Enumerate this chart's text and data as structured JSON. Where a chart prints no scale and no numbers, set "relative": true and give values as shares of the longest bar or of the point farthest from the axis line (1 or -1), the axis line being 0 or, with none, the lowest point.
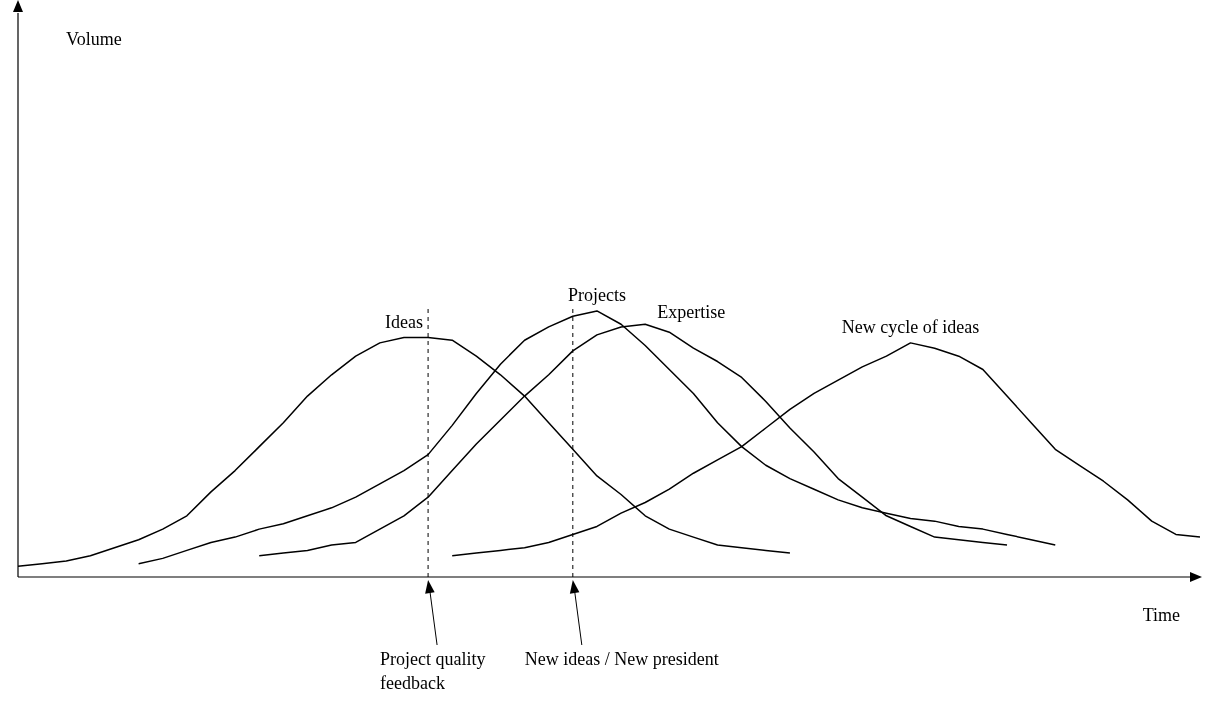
{
  "chart_data": {
    "type": "line",
    "relative": true,
    "xlabel": "Time",
    "legend": false,
    "marker": "none",
    "line_style": "solid",
    "categories": [
      null,
      null,
      null,
      null,
      null,
      null,
      null,
      null,
      null,
      null,
      null,
      null,
      null,
      null,
      null,
      null,
      null,
      null,
      null,
      null,
      null,
      null,
      null,
      null,
      null,
      null,
      null,
      null,
      null,
      null,
      null,
      null,
      null,
      null,
      null,
      null,
      null,
      null,
      null,
      null,
      null,
      null,
      null,
      null,
      null,
      null,
      null,
      null,
      null,
      null
    ],
    "series": [
      {
        "name": "Ideas",
        "color": "#000000",
        "values": [
          0.04,
          0.05,
          0.06,
          0.08,
          0.11,
          0.14,
          0.18,
          0.23,
          0.32,
          0.4,
          0.49,
          0.58,
          0.68,
          0.76,
          0.83,
          0.88,
          0.9,
          0.9,
          0.89,
          0.83,
          0.76,
          0.68,
          0.58,
          0.48,
          0.38,
          0.31,
          0.23,
          0.18,
          0.15,
          0.12,
          0.11,
          0.1,
          0.09,
          null,
          null,
          null,
          null,
          null,
          null,
          null,
          null,
          null,
          null,
          null,
          null,
          null,
          null,
          null,
          null,
          null
        ]
      },
      {
        "name": "Projects",
        "color": "#000000",
        "values": [
          null,
          null,
          null,
          null,
          null,
          0.05,
          0.07,
          0.1,
          0.13,
          0.15,
          0.18,
          0.2,
          0.23,
          0.26,
          0.3,
          0.35,
          0.4,
          0.46,
          0.57,
          0.69,
          0.8,
          0.89,
          0.94,
          0.98,
          1,
          0.95,
          0.87,
          0.78,
          0.69,
          0.58,
          0.49,
          0.42,
          0.37,
          0.33,
          0.29,
          0.26,
          0.24,
          0.22,
          0.21,
          0.19,
          0.18,
          0.16,
          0.14,
          0.12,
          null,
          null,
          null,
          null,
          null,
          null
        ]
      },
      {
        "name": "Expertise",
        "color": "#000000",
        "values": [
          null,
          null,
          null,
          null,
          null,
          null,
          null,
          null,
          null,
          null,
          0.08,
          0.09,
          0.1,
          0.12,
          0.13,
          0.18,
          0.23,
          0.3,
          0.4,
          0.5,
          0.59,
          0.68,
          0.76,
          0.85,
          0.91,
          0.94,
          0.95,
          0.92,
          0.86,
          0.81,
          0.75,
          0.66,
          0.56,
          0.47,
          0.37,
          0.3,
          0.23,
          0.19,
          0.15,
          0.14,
          0.13,
          0.12,
          null,
          null,
          null,
          null,
          null,
          null,
          null,
          null
        ]
      },
      {
        "name": "New cycle of ideas",
        "color": "#000000",
        "values": [
          null,
          null,
          null,
          null,
          null,
          null,
          null,
          null,
          null,
          null,
          null,
          null,
          null,
          null,
          null,
          null,
          null,
          null,
          0.08,
          0.09,
          0.1,
          0.11,
          0.13,
          0.16,
          0.19,
          0.24,
          0.28,
          0.33,
          0.39,
          0.44,
          0.49,
          0.56,
          0.63,
          0.69,
          0.74,
          0.79,
          0.83,
          0.88,
          0.86,
          0.83,
          0.78,
          0.68,
          0.58,
          0.48,
          0.42,
          0.36,
          0.29,
          0.21,
          0.16,
          0.15
        ]
      }
    ],
    "annotations": [
      "Volume",
      "Project quality feedback",
      "New ideas / New president"
    ]
  }
}
